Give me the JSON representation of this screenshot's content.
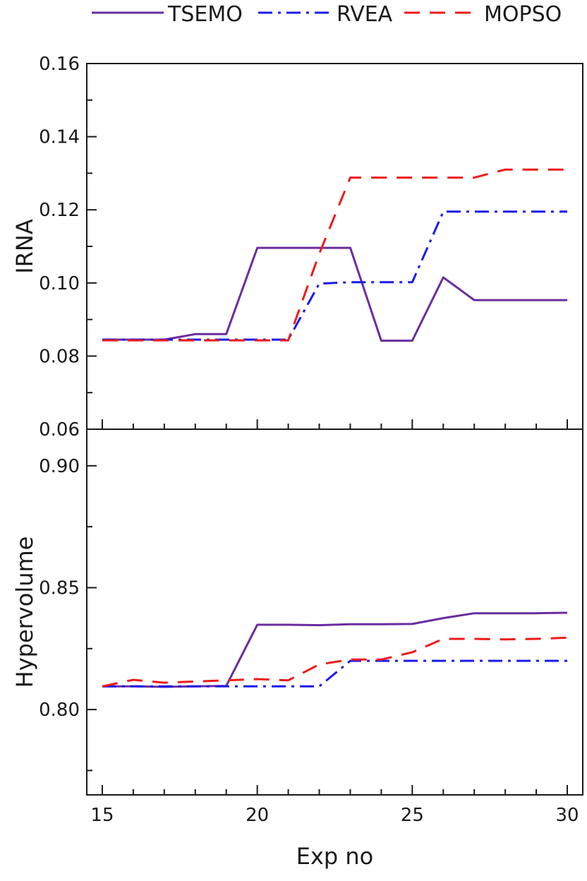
{
  "chart_data": [
    {
      "type": "line",
      "panel": "top",
      "ylabel": "IRNA",
      "xlim": [
        14.5,
        30.5
      ],
      "ylim": [
        0.06,
        0.16
      ],
      "yticks": [
        "0.06",
        "0.08",
        "0.10",
        "0.12",
        "0.14",
        "0.16"
      ],
      "x": [
        15,
        16,
        17,
        18,
        19,
        20,
        21,
        22,
        23,
        24,
        25,
        26,
        27,
        28,
        29,
        30
      ],
      "series": [
        {
          "name": "TSEMO",
          "color": "#6a2c9e",
          "dash": "solid",
          "values": [
            0.0845,
            0.0845,
            0.0845,
            0.086,
            0.086,
            0.1096,
            0.1096,
            0.1096,
            0.1096,
            0.0842,
            0.0842,
            0.1015,
            0.0953,
            0.0953,
            0.0953,
            0.0953
          ]
        },
        {
          "name": "RVEA",
          "color": "#1a1aee",
          "dash": "dashdot",
          "values": [
            0.0845,
            0.0845,
            0.0845,
            0.0845,
            0.0845,
            0.0845,
            0.0845,
            0.0998,
            0.1002,
            0.1002,
            0.1002,
            0.1195,
            0.1195,
            0.1195,
            0.1195,
            0.1195
          ]
        },
        {
          "name": "MOPSO",
          "color": "#ee1a1a",
          "dash": "dash",
          "values": [
            0.0843,
            0.0843,
            0.0843,
            0.0843,
            0.0843,
            0.0843,
            0.0843,
            0.108,
            0.1288,
            0.1288,
            0.1288,
            0.1288,
            0.1288,
            0.131,
            0.131,
            0.131
          ]
        }
      ]
    },
    {
      "type": "line",
      "panel": "bottom",
      "ylabel": "Hypervolume",
      "xlabel": "Exp no",
      "xlim": [
        14.5,
        30.5
      ],
      "ylim": [
        0.765,
        0.915
      ],
      "yticks": [
        "0.80",
        "0.85",
        "0.90"
      ],
      "xticks": [
        "15",
        "20",
        "25",
        "30"
      ],
      "x": [
        15,
        16,
        17,
        18,
        19,
        20,
        21,
        22,
        23,
        24,
        25,
        26,
        27,
        28,
        29,
        30
      ],
      "series": [
        {
          "name": "TSEMO",
          "color": "#6a2c9e",
          "dash": "solid",
          "values": [
            0.8095,
            0.8095,
            0.8093,
            0.8095,
            0.8097,
            0.8348,
            0.8348,
            0.8346,
            0.835,
            0.835,
            0.8351,
            0.8375,
            0.8395,
            0.8395,
            0.8395,
            0.8397
          ]
        },
        {
          "name": "RVEA",
          "color": "#1a1aee",
          "dash": "dashdot",
          "values": [
            0.8095,
            0.8095,
            0.8095,
            0.8095,
            0.8095,
            0.8095,
            0.8095,
            0.8095,
            0.82,
            0.82,
            0.82,
            0.82,
            0.82,
            0.82,
            0.82,
            0.82
          ]
        },
        {
          "name": "MOPSO",
          "color": "#ee1a1a",
          "dash": "dash",
          "values": [
            0.8095,
            0.8122,
            0.811,
            0.8115,
            0.812,
            0.8125,
            0.812,
            0.8185,
            0.8205,
            0.8205,
            0.8235,
            0.829,
            0.829,
            0.8288,
            0.829,
            0.8295
          ]
        }
      ]
    }
  ],
  "legend": [
    {
      "label": "TSEMO",
      "color": "#6a2c9e",
      "dash": "solid"
    },
    {
      "label": "RVEA",
      "color": "#1a1aee",
      "dash": "dashdot"
    },
    {
      "label": "MOPSO",
      "color": "#ee1a1a",
      "dash": "dash"
    }
  ]
}
